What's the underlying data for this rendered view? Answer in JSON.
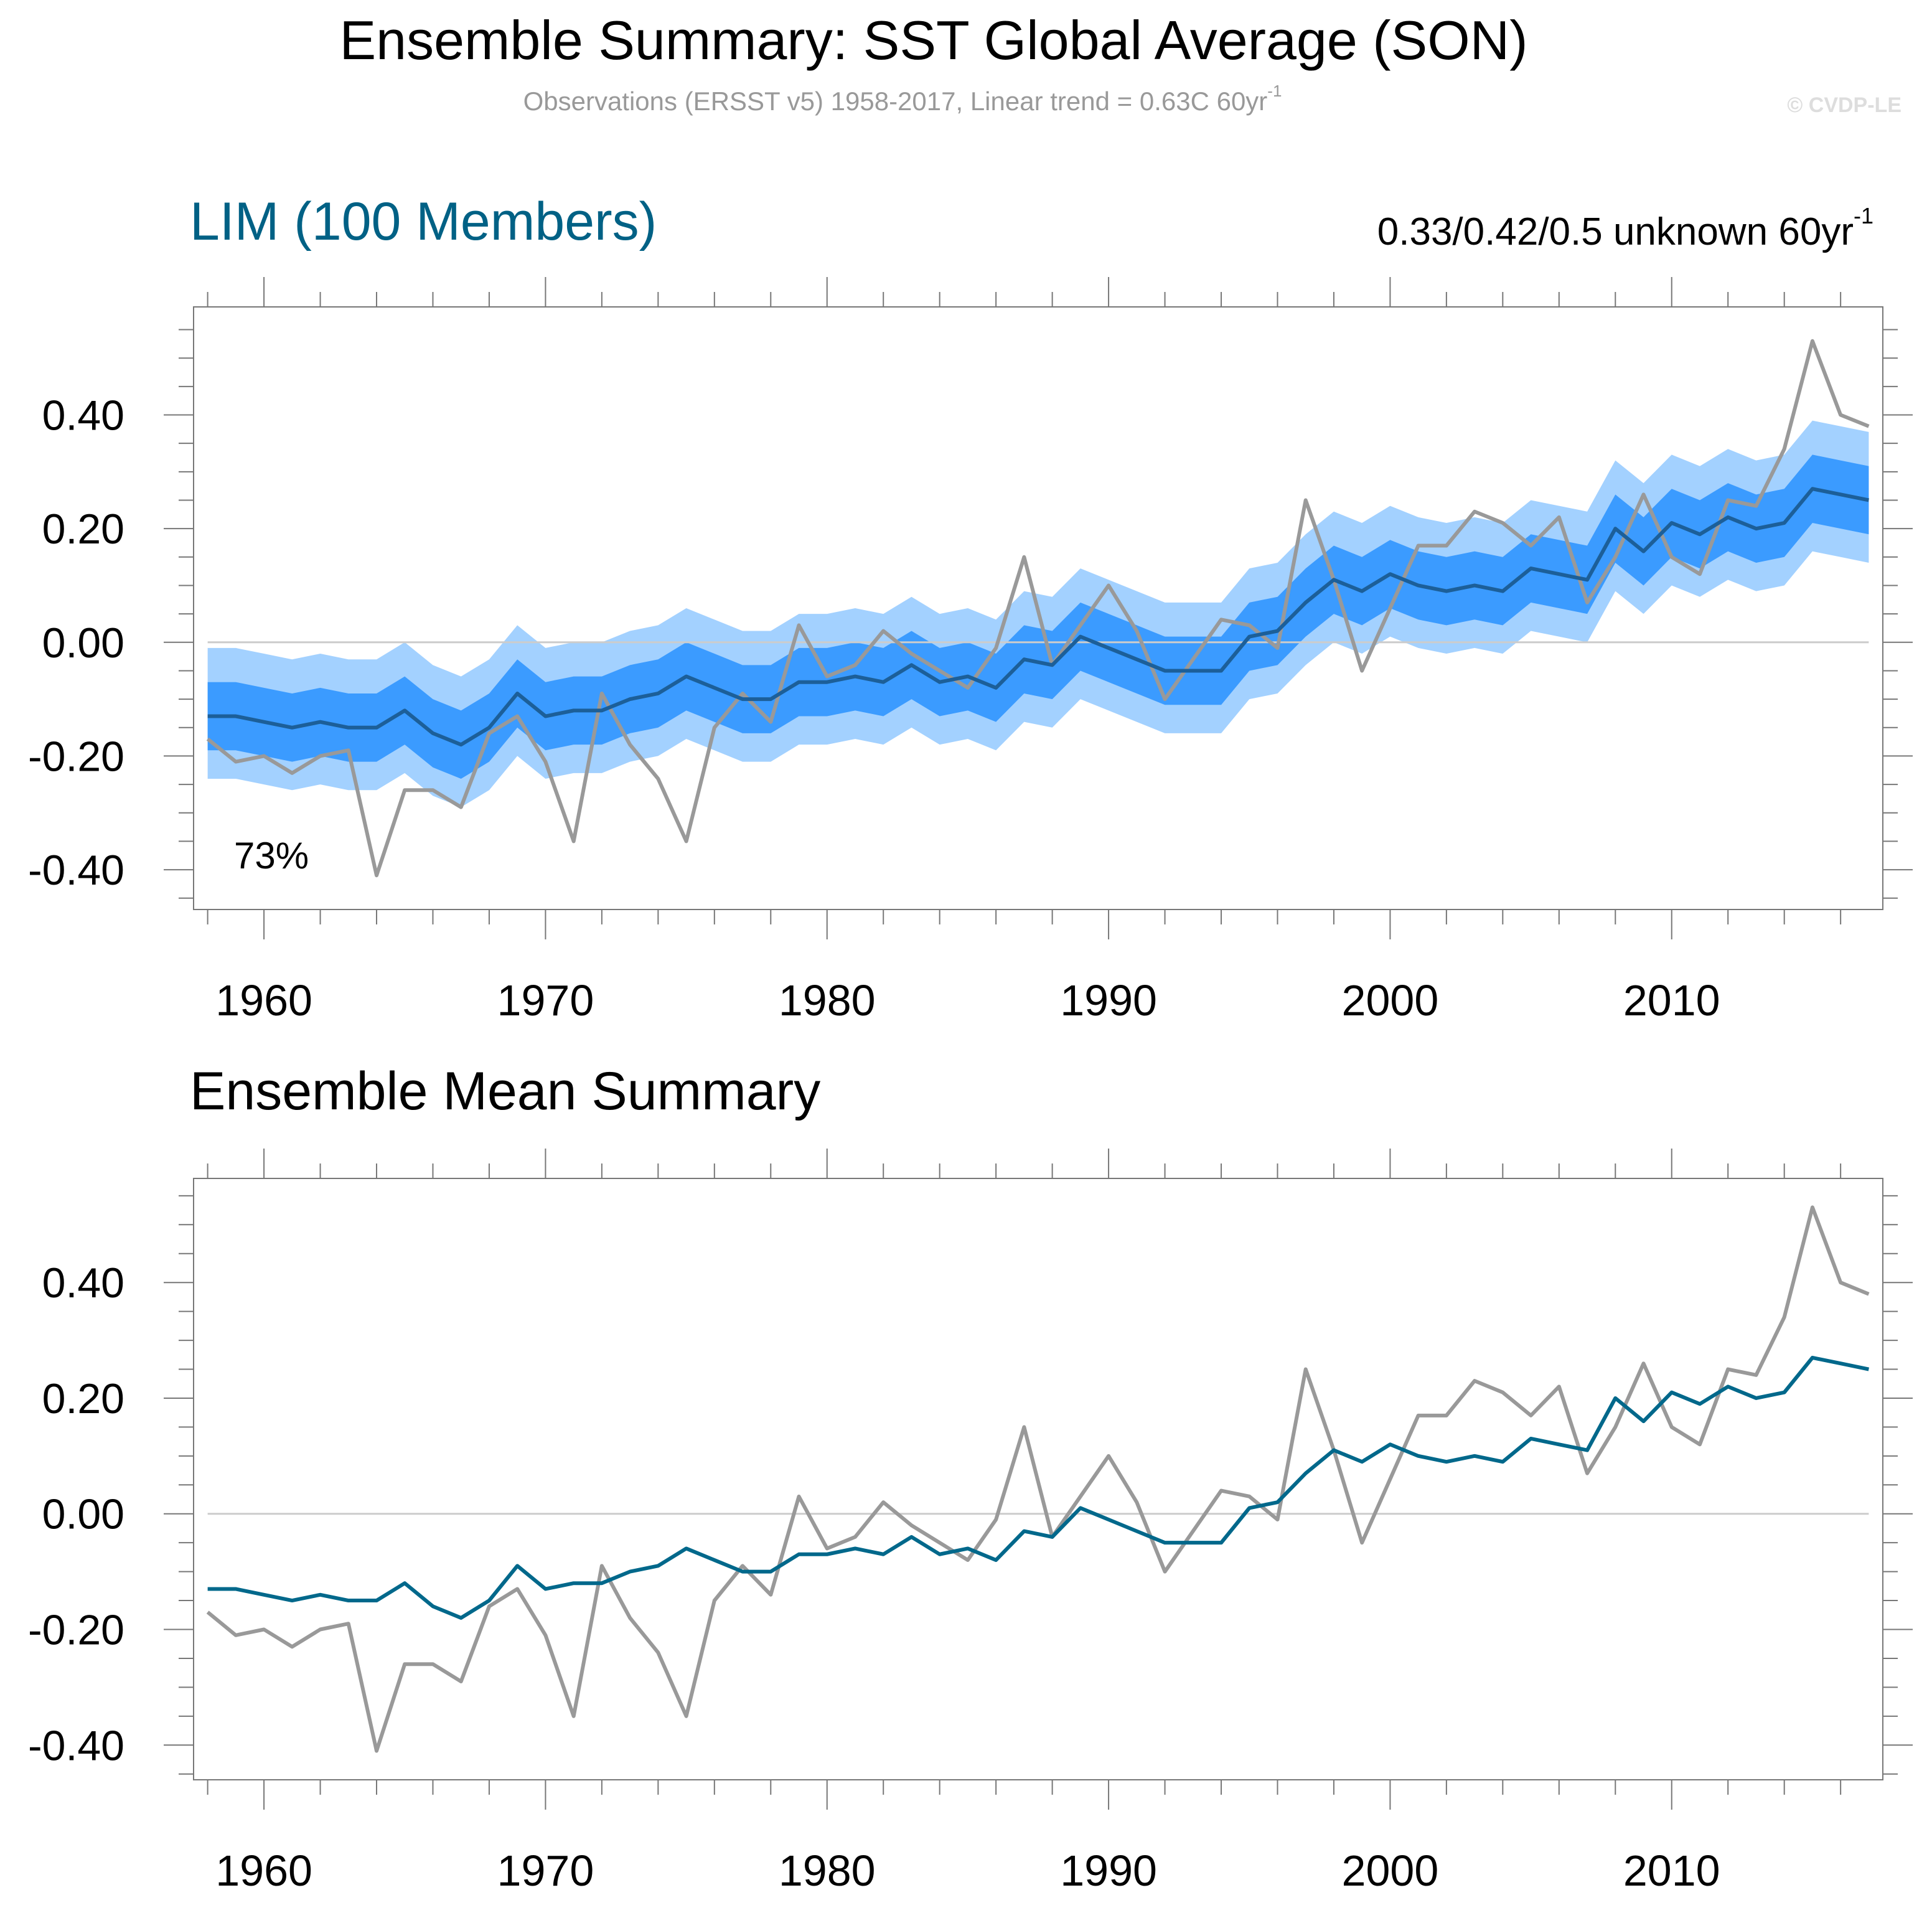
{
  "title": "Ensemble Summary: SST Global Average (SON)",
  "subtitle": {
    "text": "Observations (ERSST v5) 1958-2017, Linear trend = 0.63C 60yr",
    "sup": "-1"
  },
  "watermark": "© CVDP-LE",
  "colors": {
    "outer_band": "#a3d1ff",
    "inner_band": "#3b9bff",
    "ensemble_mean_top": "#1c5f99",
    "ensemble_mean_bottom": "#00688b",
    "observations": "#999999",
    "zero_line": "#cccccc",
    "lim_title": "#006185"
  },
  "chart_data": [
    {
      "type": "area",
      "title": "LIM (100 Members)",
      "trend_label": {
        "text": "0.33/0.42/0.5 unknown 60yr",
        "sup": "-1"
      },
      "annotation": "73%",
      "xlim": [
        1957.5,
        2017.5
      ],
      "ylim": [
        -0.47,
        0.59
      ],
      "x_ticks": [
        1960,
        1970,
        1980,
        1990,
        2000,
        2010
      ],
      "x_tick_labels": [
        "1960",
        "1970",
        "1980",
        "1990",
        "2000",
        "2010"
      ],
      "y_ticks": [
        -0.4,
        -0.2,
        0.0,
        0.2,
        0.4
      ],
      "y_tick_labels": [
        "-0.40",
        "-0.20",
        "0.00",
        "0.20",
        "0.40"
      ],
      "grid": false,
      "x_start": 1958,
      "bands": {
        "outer_upper": [
          -0.01,
          -0.01,
          -0.02,
          -0.03,
          -0.02,
          -0.03,
          -0.03,
          0.0,
          -0.04,
          -0.06,
          -0.03,
          0.03,
          -0.01,
          0.0,
          0.0,
          0.02,
          0.03,
          0.06,
          0.04,
          0.02,
          0.02,
          0.05,
          0.05,
          0.06,
          0.05,
          0.08,
          0.05,
          0.06,
          0.04,
          0.09,
          0.08,
          0.13,
          0.11,
          0.09,
          0.07,
          0.07,
          0.07,
          0.13,
          0.14,
          0.19,
          0.23,
          0.21,
          0.24,
          0.22,
          0.21,
          0.22,
          0.21,
          0.25,
          0.24,
          0.23,
          0.32,
          0.28,
          0.33,
          0.31,
          0.34,
          0.32,
          0.33,
          0.39,
          0.38,
          0.37
        ],
        "outer_lower": [
          -0.24,
          -0.24,
          -0.25,
          -0.26,
          -0.25,
          -0.26,
          -0.26,
          -0.23,
          -0.27,
          -0.29,
          -0.26,
          -0.2,
          -0.24,
          -0.23,
          -0.23,
          -0.21,
          -0.2,
          -0.17,
          -0.19,
          -0.21,
          -0.21,
          -0.18,
          -0.18,
          -0.17,
          -0.18,
          -0.15,
          -0.18,
          -0.17,
          -0.19,
          -0.14,
          -0.15,
          -0.1,
          -0.12,
          -0.14,
          -0.16,
          -0.16,
          -0.16,
          -0.1,
          -0.09,
          -0.04,
          0.0,
          -0.02,
          0.01,
          -0.01,
          -0.02,
          -0.01,
          -0.02,
          0.02,
          0.01,
          0.0,
          0.09,
          0.05,
          0.1,
          0.08,
          0.11,
          0.09,
          0.1,
          0.16,
          0.15,
          0.14
        ],
        "inner_upper": [
          -0.07,
          -0.07,
          -0.08,
          -0.09,
          -0.08,
          -0.09,
          -0.09,
          -0.06,
          -0.1,
          -0.12,
          -0.09,
          -0.03,
          -0.07,
          -0.06,
          -0.06,
          -0.04,
          -0.03,
          0.0,
          -0.02,
          -0.04,
          -0.04,
          -0.01,
          -0.01,
          0.0,
          -0.01,
          0.02,
          -0.01,
          0.0,
          -0.02,
          0.03,
          0.02,
          0.07,
          0.05,
          0.03,
          0.01,
          0.01,
          0.01,
          0.07,
          0.08,
          0.13,
          0.17,
          0.15,
          0.18,
          0.16,
          0.15,
          0.16,
          0.15,
          0.19,
          0.18,
          0.17,
          0.26,
          0.22,
          0.27,
          0.25,
          0.28,
          0.26,
          0.27,
          0.33,
          0.32,
          0.31
        ],
        "inner_lower": [
          -0.19,
          -0.19,
          -0.2,
          -0.21,
          -0.2,
          -0.21,
          -0.21,
          -0.18,
          -0.22,
          -0.24,
          -0.21,
          -0.15,
          -0.19,
          -0.18,
          -0.18,
          -0.16,
          -0.15,
          -0.12,
          -0.14,
          -0.16,
          -0.16,
          -0.13,
          -0.13,
          -0.12,
          -0.13,
          -0.1,
          -0.13,
          -0.12,
          -0.14,
          -0.09,
          -0.1,
          -0.05,
          -0.07,
          -0.09,
          -0.11,
          -0.11,
          -0.11,
          -0.05,
          -0.04,
          0.01,
          0.05,
          0.03,
          0.06,
          0.04,
          0.03,
          0.04,
          0.03,
          0.07,
          0.06,
          0.05,
          0.14,
          0.1,
          0.15,
          0.13,
          0.16,
          0.14,
          0.15,
          0.21,
          0.2,
          0.19
        ]
      },
      "ensemble_mean": [
        -0.13,
        -0.13,
        -0.14,
        -0.15,
        -0.14,
        -0.15,
        -0.15,
        -0.12,
        -0.16,
        -0.18,
        -0.15,
        -0.09,
        -0.13,
        -0.12,
        -0.12,
        -0.1,
        -0.09,
        -0.06,
        -0.08,
        -0.1,
        -0.1,
        -0.07,
        -0.07,
        -0.06,
        -0.07,
        -0.04,
        -0.07,
        -0.06,
        -0.08,
        -0.03,
        -0.04,
        0.01,
        -0.01,
        -0.03,
        -0.05,
        -0.05,
        -0.05,
        0.01,
        0.02,
        0.07,
        0.11,
        0.09,
        0.12,
        0.1,
        0.09,
        0.1,
        0.09,
        0.13,
        0.12,
        0.11,
        0.2,
        0.16,
        0.21,
        0.19,
        0.22,
        0.2,
        0.21,
        0.27,
        0.26,
        0.25
      ],
      "observations": [
        -0.17,
        -0.21,
        -0.2,
        -0.23,
        -0.2,
        -0.19,
        -0.41,
        -0.26,
        -0.26,
        -0.29,
        -0.16,
        -0.13,
        -0.21,
        -0.35,
        -0.09,
        -0.18,
        -0.24,
        -0.35,
        -0.15,
        -0.09,
        -0.14,
        0.03,
        -0.06,
        -0.04,
        0.02,
        -0.02,
        -0.05,
        -0.08,
        -0.01,
        0.15,
        -0.04,
        0.03,
        0.1,
        0.02,
        -0.1,
        -0.03,
        0.04,
        0.03,
        -0.01,
        0.25,
        0.11,
        -0.05,
        0.06,
        0.17,
        0.17,
        0.23,
        0.21,
        0.17,
        0.22,
        0.07,
        0.15,
        0.26,
        0.15,
        0.12,
        0.25,
        0.24,
        0.34,
        0.53,
        0.4,
        0.38
      ]
    },
    {
      "type": "line",
      "title": "Ensemble Mean Summary",
      "xlim": [
        1957.5,
        2017.5
      ],
      "ylim": [
        -0.46,
        0.58
      ],
      "x_ticks": [
        1960,
        1970,
        1980,
        1990,
        2000,
        2010
      ],
      "x_tick_labels": [
        "1960",
        "1970",
        "1980",
        "1990",
        "2000",
        "2010"
      ],
      "y_ticks": [
        -0.4,
        -0.2,
        0.0,
        0.2,
        0.4
      ],
      "y_tick_labels": [
        "-0.40",
        "-0.20",
        "0.00",
        "0.20",
        "0.40"
      ],
      "grid": false,
      "x_start": 1958,
      "ensemble_mean": [
        -0.13,
        -0.13,
        -0.14,
        -0.15,
        -0.14,
        -0.15,
        -0.15,
        -0.12,
        -0.16,
        -0.18,
        -0.15,
        -0.09,
        -0.13,
        -0.12,
        -0.12,
        -0.1,
        -0.09,
        -0.06,
        -0.08,
        -0.1,
        -0.1,
        -0.07,
        -0.07,
        -0.06,
        -0.07,
        -0.04,
        -0.07,
        -0.06,
        -0.08,
        -0.03,
        -0.04,
        0.01,
        -0.01,
        -0.03,
        -0.05,
        -0.05,
        -0.05,
        0.01,
        0.02,
        0.07,
        0.11,
        0.09,
        0.12,
        0.1,
        0.09,
        0.1,
        0.09,
        0.13,
        0.12,
        0.11,
        0.2,
        0.16,
        0.21,
        0.19,
        0.22,
        0.2,
        0.21,
        0.27,
        0.26,
        0.25
      ],
      "observations": [
        -0.17,
        -0.21,
        -0.2,
        -0.23,
        -0.2,
        -0.19,
        -0.41,
        -0.26,
        -0.26,
        -0.29,
        -0.16,
        -0.13,
        -0.21,
        -0.35,
        -0.09,
        -0.18,
        -0.24,
        -0.35,
        -0.15,
        -0.09,
        -0.14,
        0.03,
        -0.06,
        -0.04,
        0.02,
        -0.02,
        -0.05,
        -0.08,
        -0.01,
        0.15,
        -0.04,
        0.03,
        0.1,
        0.02,
        -0.1,
        -0.03,
        0.04,
        0.03,
        -0.01,
        0.25,
        0.11,
        -0.05,
        0.06,
        0.17,
        0.17,
        0.23,
        0.21,
        0.17,
        0.22,
        0.07,
        0.15,
        0.26,
        0.15,
        0.12,
        0.25,
        0.24,
        0.34,
        0.53,
        0.4,
        0.38
      ]
    }
  ]
}
